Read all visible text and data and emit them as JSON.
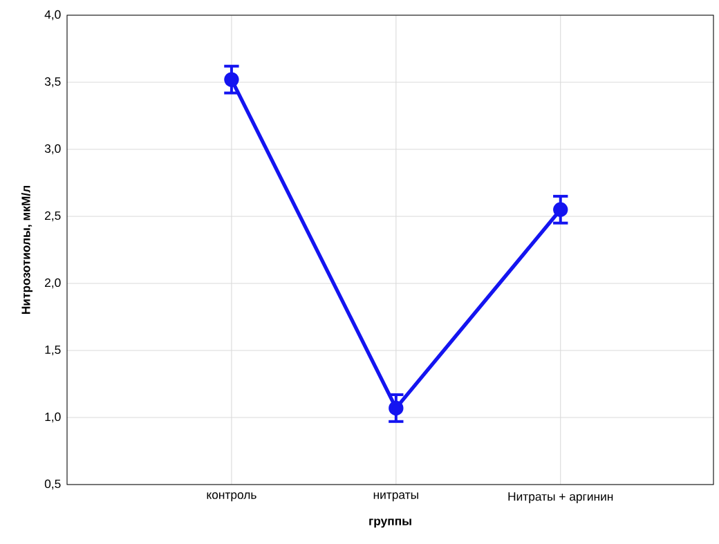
{
  "chart_data": {
    "type": "line",
    "xlabel": "группы",
    "ylabel": "Нитрозотиолы, мкМ/л",
    "categories": [
      "контроль",
      "нитраты",
      "Нитраты + аргинин"
    ],
    "series": [
      {
        "color": "#1414f0",
        "values": [
          3.52,
          1.07,
          2.55
        ],
        "errors": [
          0.1,
          0.1,
          0.1
        ]
      }
    ],
    "ylim": [
      0.5,
      4.0
    ],
    "yticks": [
      {
        "value": 0.5,
        "label": "0,5"
      },
      {
        "value": 1.0,
        "label": "1,0"
      },
      {
        "value": 1.5,
        "label": "1,5"
      },
      {
        "value": 2.0,
        "label": "2,0"
      },
      {
        "value": 2.5,
        "label": "2,5"
      },
      {
        "value": 3.0,
        "label": "3,0"
      },
      {
        "value": 3.5,
        "label": "3,5"
      },
      {
        "value": 4.0,
        "label": "4,0"
      }
    ],
    "grid": true,
    "marker": "circle",
    "line_style": "solid"
  }
}
